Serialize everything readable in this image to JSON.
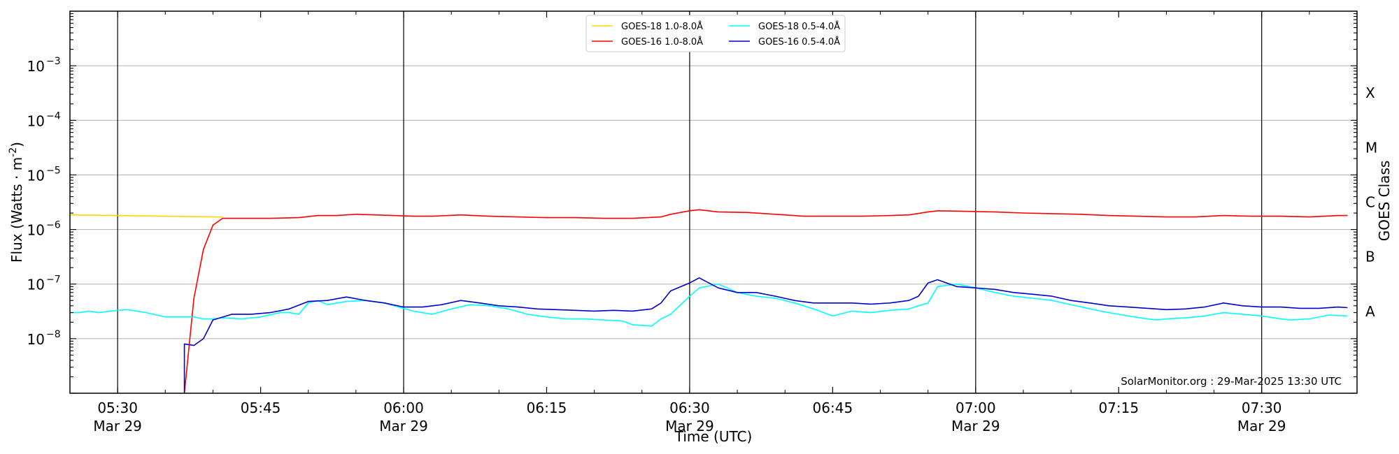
{
  "chart_data": {
    "type": "line",
    "xlabel": "Time (UTC)",
    "ylabel_main": "Flux (Watts · m",
    "ylabel_exp": "-2",
    "ylabel_close": ")",
    "ylabel_right": "GOES Class",
    "y_scale": "log",
    "x_range_minutes_utc": [
      "05:25",
      "07:40"
    ],
    "ylim": [
      1e-09,
      0.01
    ],
    "grid": "horizontal gridlines at each decade; vertical lines at 05:30, 06:00, 06:30, 07:00, 07:30",
    "legend_placement": "top-center",
    "x_ticks": [
      {
        "time": "05:30",
        "label": "05:30",
        "date": "Mar 29"
      },
      {
        "time": "05:45",
        "label": "05:45",
        "date": ""
      },
      {
        "time": "06:00",
        "label": "06:00",
        "date": "Mar 29"
      },
      {
        "time": "06:15",
        "label": "06:15",
        "date": ""
      },
      {
        "time": "06:30",
        "label": "06:30",
        "date": "Mar 29"
      },
      {
        "time": "06:45",
        "label": "06:45",
        "date": ""
      },
      {
        "time": "07:00",
        "label": "07:00",
        "date": "Mar 29"
      },
      {
        "time": "07:15",
        "label": "07:15",
        "date": ""
      },
      {
        "time": "07:30",
        "label": "07:30",
        "date": "Mar 29"
      }
    ],
    "y_ticks": [
      {
        "value": 1e-08,
        "base": "10",
        "exp": "−8"
      },
      {
        "value": 1e-07,
        "base": "10",
        "exp": "−7"
      },
      {
        "value": 1e-06,
        "base": "10",
        "exp": "−6"
      },
      {
        "value": 1e-05,
        "base": "10",
        "exp": "−5"
      },
      {
        "value": 0.0001,
        "base": "10",
        "exp": "−4"
      },
      {
        "value": 0.001,
        "base": "10",
        "exp": "−3"
      }
    ],
    "class_labels": [
      {
        "label": "A",
        "value": 1e-08
      },
      {
        "label": "B",
        "value": 1e-07
      },
      {
        "label": "C",
        "value": 1e-06
      },
      {
        "label": "M",
        "value": 1e-05
      },
      {
        "label": "X",
        "value": 0.0001
      }
    ],
    "series": [
      {
        "name": "GOES-18 1.0-8.0Å",
        "color": "#ffd700",
        "x": [
          "05:25",
          "05:30",
          "05:35",
          "05:40",
          "05:41"
        ],
        "y": [
          1.85e-06,
          1.8e-06,
          1.75e-06,
          1.7e-06,
          1.7e-06
        ]
      },
      {
        "name": "GOES-16 1.0-8.0Å",
        "color": "#ff0000",
        "x": [
          "05:37",
          "05:38",
          "05:39",
          "05:40",
          "05:41",
          "05:43",
          "05:46",
          "05:49",
          "05:51",
          "05:53",
          "05:55",
          "05:57",
          "05:59",
          "06:01",
          "06:03",
          "06:06",
          "06:09",
          "06:12",
          "06:15",
          "06:18",
          "06:21",
          "06:24",
          "06:27",
          "06:28",
          "06:30",
          "06:31",
          "06:33",
          "06:36",
          "06:39",
          "06:42",
          "06:45",
          "06:48",
          "06:51",
          "06:53",
          "06:55",
          "06:56",
          "06:59",
          "07:02",
          "07:05",
          "07:08",
          "07:11",
          "07:14",
          "07:17",
          "07:20",
          "07:23",
          "07:26",
          "07:29",
          "07:32",
          "07:35",
          "07:38",
          "07:39"
        ],
        "y": [
          1e-09,
          5.5e-08,
          4.3e-07,
          1.2e-06,
          1.6e-06,
          1.6e-06,
          1.6e-06,
          1.65e-06,
          1.8e-06,
          1.8e-06,
          1.9e-06,
          1.85e-06,
          1.8e-06,
          1.75e-06,
          1.75e-06,
          1.85e-06,
          1.75e-06,
          1.7e-06,
          1.65e-06,
          1.65e-06,
          1.6e-06,
          1.6e-06,
          1.7e-06,
          1.9e-06,
          2.2e-06,
          2.3e-06,
          2.1e-06,
          2.05e-06,
          1.9e-06,
          1.75e-06,
          1.75e-06,
          1.75e-06,
          1.8e-06,
          1.85e-06,
          2.1e-06,
          2.2e-06,
          2.15e-06,
          2.1e-06,
          2e-06,
          1.95e-06,
          1.9e-06,
          1.8e-06,
          1.75e-06,
          1.7e-06,
          1.7e-06,
          1.8e-06,
          1.75e-06,
          1.75e-06,
          1.7e-06,
          1.8e-06,
          1.8e-06
        ]
      },
      {
        "name": "GOES-18 0.5-4.0Å",
        "color": "#00ffff",
        "x": [
          "05:25",
          "05:26",
          "05:27",
          "05:28",
          "05:30",
          "05:31",
          "05:33",
          "05:35",
          "05:36",
          "05:38",
          "05:39",
          "05:40",
          "05:41",
          "05:43",
          "05:45",
          "05:47",
          "05:48",
          "05:49",
          "05:50",
          "05:51",
          "05:52",
          "05:54",
          "05:56",
          "05:58",
          "05:59",
          "06:01",
          "06:03",
          "06:05",
          "06:07",
          "06:09",
          "06:11",
          "06:13",
          "06:15",
          "06:17",
          "06:19",
          "06:21",
          "06:23",
          "06:24",
          "06:26",
          "06:27",
          "06:28",
          "06:30",
          "06:31",
          "06:33",
          "06:35",
          "06:37",
          "06:39",
          "06:41",
          "06:43",
          "06:45",
          "06:47",
          "06:49",
          "06:51",
          "06:53",
          "06:54",
          "06:55",
          "06:56",
          "06:58",
          "07:00",
          "07:02",
          "07:04",
          "07:06",
          "07:08",
          "07:10",
          "07:12",
          "07:14",
          "07:16",
          "07:18",
          "07:19",
          "07:20",
          "07:22",
          "07:24",
          "07:26",
          "07:28",
          "07:30",
          "07:32",
          "07:33",
          "07:35",
          "07:37",
          "07:39"
        ],
        "y": [
          3e-08,
          3e-08,
          3.2e-08,
          3e-08,
          3.3e-08,
          3.4e-08,
          3e-08,
          2.5e-08,
          2.5e-08,
          2.5e-08,
          2.3e-08,
          2.3e-08,
          2.4e-08,
          2.3e-08,
          2.5e-08,
          3e-08,
          3e-08,
          2.8e-08,
          4.5e-08,
          5e-08,
          4.2e-08,
          4.8e-08,
          5e-08,
          4.5e-08,
          4e-08,
          3.2e-08,
          2.8e-08,
          3.5e-08,
          4.2e-08,
          4e-08,
          3.5e-08,
          2.8e-08,
          2.5e-08,
          2.3e-08,
          2.3e-08,
          2.2e-08,
          2.1e-08,
          1.8e-08,
          1.7e-08,
          2.3e-08,
          2.8e-08,
          6e-08,
          8.5e-08,
          1e-07,
          7e-08,
          6e-08,
          5.5e-08,
          4.5e-08,
          3.5e-08,
          2.6e-08,
          3.2e-08,
          3e-08,
          3.3e-08,
          3.5e-08,
          4e-08,
          4.5e-08,
          9e-08,
          1e-07,
          8.5e-08,
          7e-08,
          6e-08,
          5.5e-08,
          5e-08,
          4.2e-08,
          3.5e-08,
          3e-08,
          2.6e-08,
          2.3e-08,
          2.2e-08,
          2.3e-08,
          2.4e-08,
          2.6e-08,
          3e-08,
          2.8e-08,
          2.6e-08,
          2.3e-08,
          2.2e-08,
          2.3e-08,
          2.7e-08,
          2.6e-08
        ]
      },
      {
        "name": "GOES-16 0.5-4.0Å",
        "color": "#0000cc",
        "x": [
          "05:37",
          "05:37",
          "05:38",
          "05:39",
          "05:40",
          "05:42",
          "05:44",
          "05:46",
          "05:48",
          "05:50",
          "05:52",
          "05:54",
          "05:56",
          "05:58",
          "06:00",
          "06:02",
          "06:04",
          "06:06",
          "06:08",
          "06:10",
          "06:12",
          "06:14",
          "06:16",
          "06:18",
          "06:20",
          "06:22",
          "06:24",
          "06:26",
          "06:27",
          "06:28",
          "06:30",
          "06:31",
          "06:33",
          "06:35",
          "06:37",
          "06:39",
          "06:41",
          "06:43",
          "06:45",
          "06:47",
          "06:49",
          "06:51",
          "06:53",
          "06:54",
          "06:55",
          "06:56",
          "06:58",
          "07:00",
          "07:02",
          "07:04",
          "07:06",
          "07:08",
          "07:10",
          "07:12",
          "07:14",
          "07:16",
          "07:18",
          "07:20",
          "07:22",
          "07:24",
          "07:26",
          "07:28",
          "07:30",
          "07:32",
          "07:34",
          "07:36",
          "07:38",
          "07:39"
        ],
        "y": [
          1e-09,
          8e-09,
          7.5e-09,
          1e-08,
          2.2e-08,
          2.8e-08,
          2.8e-08,
          3e-08,
          3.5e-08,
          4.8e-08,
          5e-08,
          5.8e-08,
          5e-08,
          4.5e-08,
          3.8e-08,
          3.8e-08,
          4.2e-08,
          5e-08,
          4.5e-08,
          4e-08,
          3.8e-08,
          3.5e-08,
          3.4e-08,
          3.3e-08,
          3.2e-08,
          3.3e-08,
          3.2e-08,
          3.5e-08,
          4.5e-08,
          7.5e-08,
          1.05e-07,
          1.3e-07,
          8.5e-08,
          7e-08,
          7e-08,
          6e-08,
          5e-08,
          4.5e-08,
          4.5e-08,
          4.5e-08,
          4.3e-08,
          4.5e-08,
          5e-08,
          6e-08,
          1.05e-07,
          1.2e-07,
          9e-08,
          8.5e-08,
          8e-08,
          7e-08,
          6.5e-08,
          6e-08,
          5e-08,
          4.5e-08,
          4e-08,
          3.8e-08,
          3.6e-08,
          3.4e-08,
          3.5e-08,
          3.8e-08,
          4.5e-08,
          4e-08,
          3.8e-08,
          3.8e-08,
          3.6e-08,
          3.6e-08,
          3.8e-08,
          3.7e-08
        ]
      }
    ],
    "credit": "SolarMonitor.org : 29-Mar-2025 13:30 UTC"
  }
}
